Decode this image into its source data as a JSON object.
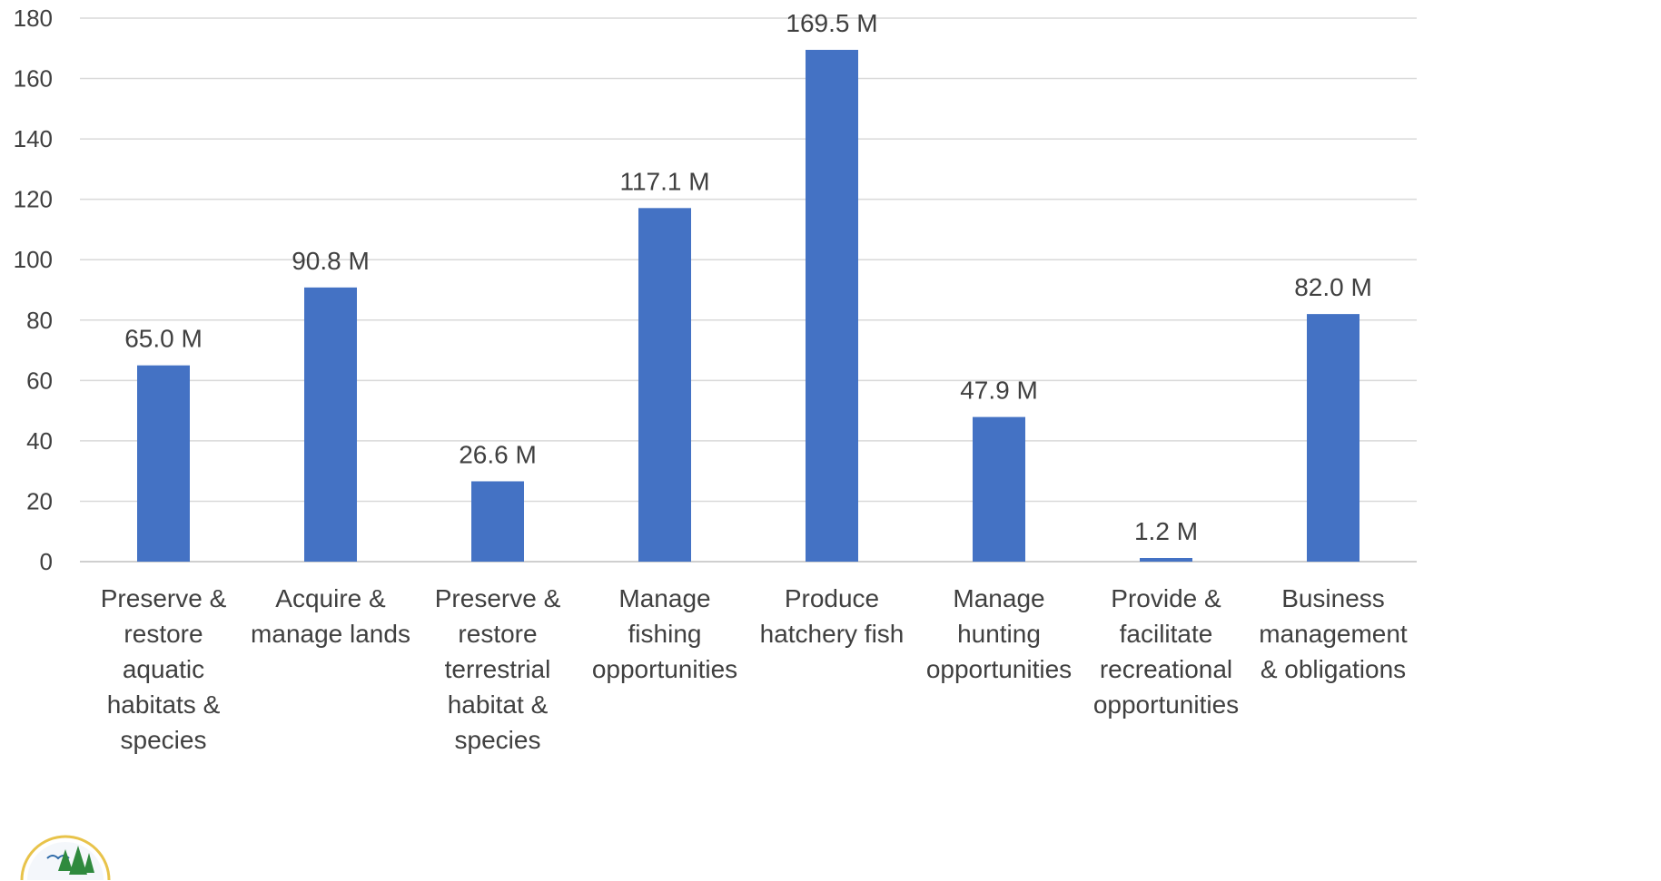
{
  "chart_data": {
    "type": "bar",
    "categories": [
      [
        "Preserve &",
        "restore",
        "aquatic",
        "habitats &",
        "species"
      ],
      [
        "Acquire &",
        "manage lands"
      ],
      [
        "Preserve &",
        "restore",
        "terrestrial",
        "habitat &",
        "species"
      ],
      [
        "Manage",
        "fishing",
        "opportunities"
      ],
      [
        "Produce",
        "hatchery fish"
      ],
      [
        "Manage",
        "hunting",
        "opportunities"
      ],
      [
        "Provide &",
        "facilitate",
        "recreational",
        "opportunities"
      ],
      [
        "Business",
        "management",
        "& obligations"
      ]
    ],
    "values": [
      65.0,
      90.8,
      26.6,
      117.1,
      169.5,
      47.9,
      1.2,
      82.0
    ],
    "data_labels": [
      "65.0 M",
      "90.8 M",
      "26.6 M",
      "117.1 M",
      "169.5 M",
      "47.9 M",
      "1.2 M",
      "82.0 M"
    ],
    "ylim": [
      0,
      180
    ],
    "yticks": [
      0,
      20,
      40,
      60,
      80,
      100,
      120,
      140,
      160,
      180
    ],
    "grid": true,
    "bar_color": "#4472c4",
    "title": "",
    "xlabel": "",
    "ylabel": ""
  }
}
